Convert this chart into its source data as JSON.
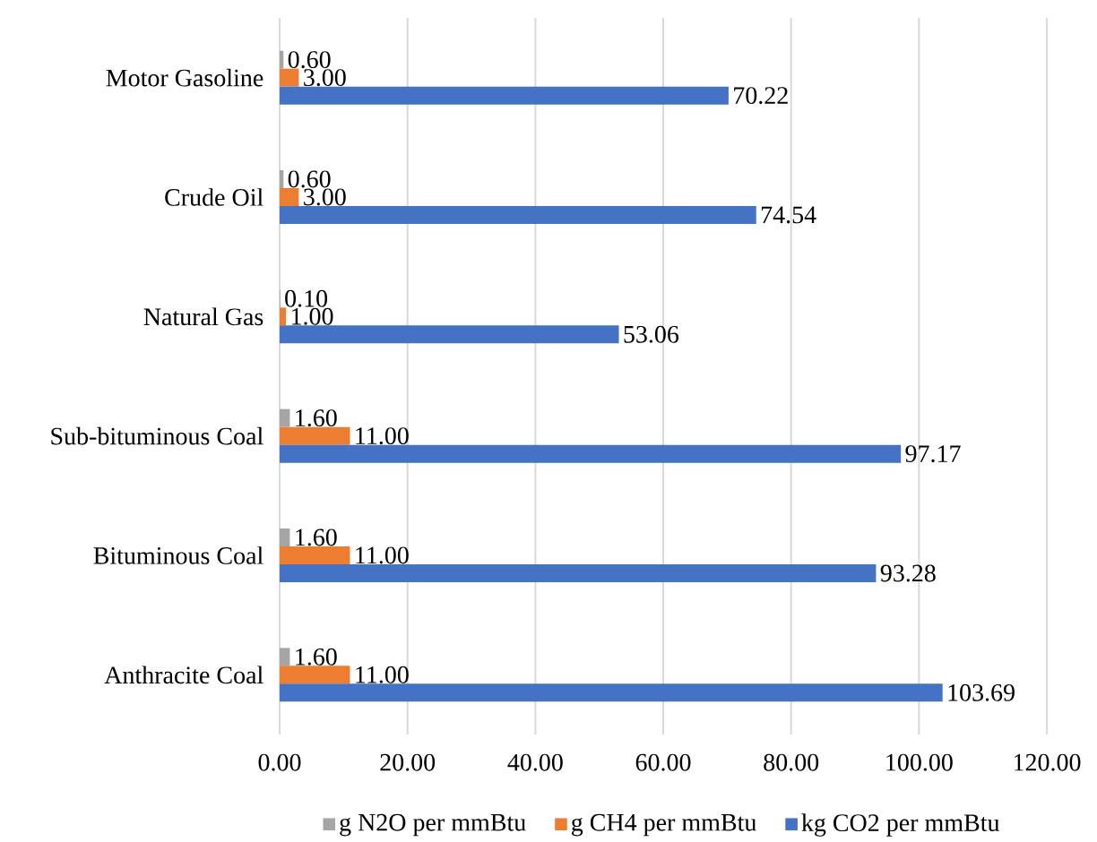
{
  "chart_data": {
    "type": "bar",
    "orientation": "horizontal",
    "categories": [
      "Motor Gasoline",
      "Crude Oil",
      "Natural Gas",
      "Sub-bituminous Coal",
      "Bituminous Coal",
      "Anthracite Coal"
    ],
    "series": [
      {
        "name": "g N2O per mmBtu",
        "color": "#a5a5a5",
        "values": [
          0.6,
          0.6,
          0.1,
          1.6,
          1.6,
          1.6
        ],
        "value_labels": [
          "0.60",
          "0.60",
          "0.10",
          "1.60",
          "1.60",
          "1.60"
        ]
      },
      {
        "name": "g CH4 per mmBtu",
        "color": "#ed7d31",
        "values": [
          3,
          3,
          1,
          11,
          11,
          11
        ],
        "value_labels": [
          "3.00",
          "3.00",
          "1.00",
          "11.00",
          "11.00",
          "11.00"
        ]
      },
      {
        "name": "kg CO2 per mmBtu",
        "color": "#4472c4",
        "values": [
          70.22,
          74.54,
          53.06,
          97.17,
          93.28,
          103.69
        ],
        "value_labels": [
          "70.22",
          "74.54",
          "53.06",
          "97.17",
          "93.28",
          "103.69"
        ]
      }
    ],
    "xlim": [
      0,
      120
    ],
    "xticks": [
      {
        "value": 0,
        "label": "0.00"
      },
      {
        "value": 20,
        "label": "20.00"
      },
      {
        "value": 40,
        "label": "40.00"
      },
      {
        "value": 60,
        "label": "60.00"
      },
      {
        "value": 80,
        "label": "80.00"
      },
      {
        "value": 100,
        "label": "100.00"
      },
      {
        "value": 120,
        "label": "120.00"
      }
    ],
    "grid": "x",
    "legend": "bottom"
  }
}
